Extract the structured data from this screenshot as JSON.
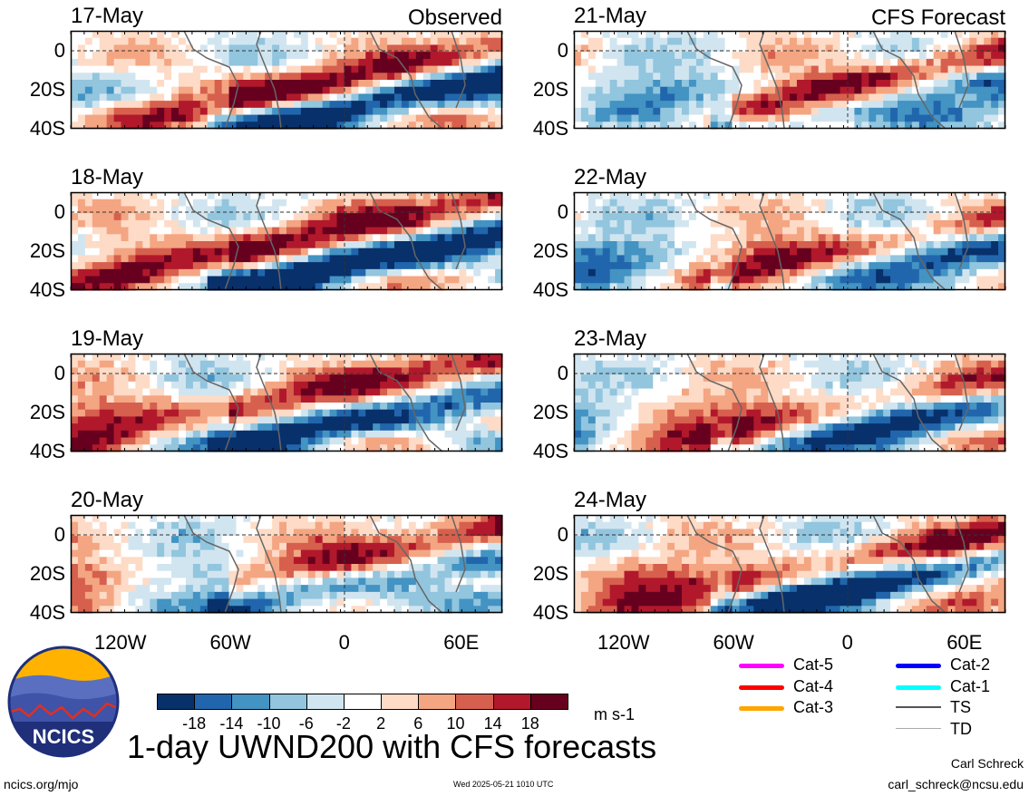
{
  "header": {
    "observed_label": "Observed",
    "forecast_label": "CFS Forecast"
  },
  "panels": [
    {
      "date": "17-May",
      "kind": "observed"
    },
    {
      "date": "18-May",
      "kind": "observed"
    },
    {
      "date": "19-May",
      "kind": "observed"
    },
    {
      "date": "20-May",
      "kind": "observed"
    },
    {
      "date": "21-May",
      "kind": "forecast"
    },
    {
      "date": "22-May",
      "kind": "forecast"
    },
    {
      "date": "23-May",
      "kind": "forecast"
    },
    {
      "date": "24-May",
      "kind": "forecast"
    }
  ],
  "chart_data": {
    "type": "heatmap",
    "title": "1-day UWND200 with CFS forecasts",
    "units": "m s-1",
    "y_ticks": [
      "0",
      "20S",
      "40S"
    ],
    "x_ticks": [
      "120W",
      "60W",
      "0",
      "60E"
    ],
    "colorbar": {
      "ticks": [
        "-18",
        "-14",
        "-10",
        "-6",
        "-2",
        "2",
        "6",
        "10",
        "14",
        "18"
      ],
      "colors": [
        "#08306b",
        "#2166ac",
        "#4393c3",
        "#92c5de",
        "#d1e5f0",
        "#ffffff",
        "#fddbc7",
        "#f4a582",
        "#d6604d",
        "#b2182b",
        "#67001f"
      ]
    }
  },
  "legend": {
    "items": [
      {
        "label": "Cat-5",
        "color": "#ff00ff"
      },
      {
        "label": "Cat-4",
        "color": "#ff0000"
      },
      {
        "label": "Cat-3",
        "color": "#ffa500"
      },
      {
        "label": "Cat-2",
        "color": "#0000ff"
      },
      {
        "label": "Cat-1",
        "color": "#00ffff"
      },
      {
        "label": "TS",
        "color": "#555555"
      },
      {
        "label": "TD",
        "color": "#aaaaaa"
      }
    ]
  },
  "footer": {
    "logo_text": "NCICS",
    "site": "ncics.org/mjo",
    "timestamp": "Wed 2025-05-21 1010 UTC",
    "author": "Carl Schreck",
    "email": "carl_schreck@ncsu.edu"
  }
}
